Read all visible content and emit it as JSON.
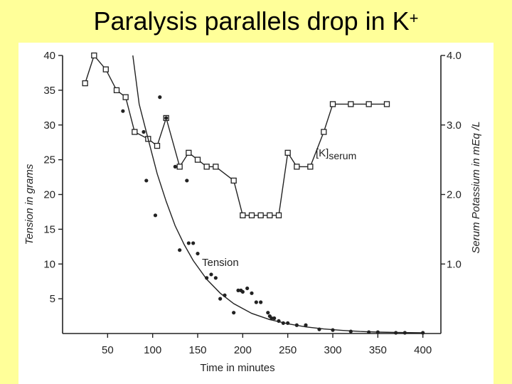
{
  "slide": {
    "title": "Paralysis parallels drop in K",
    "title_superscript": "+"
  },
  "colors": {
    "background": "#ffff99",
    "panel": "#ffffff",
    "ink": "#222222"
  },
  "chart_data": {
    "type": "scatter",
    "title": "",
    "xlabel": "Time in minutes",
    "ylabel_left": "Tension in grams",
    "ylabel_right": "Serum Potassium in mEq /L",
    "xlim": [
      0,
      420
    ],
    "ylim_left": [
      0,
      40
    ],
    "ylim_right": [
      0,
      4.0
    ],
    "x_ticks": [
      "50",
      "100",
      "150",
      "200",
      "250",
      "300",
      "350",
      "400"
    ],
    "y_left_ticks": [
      "5",
      "10",
      "15",
      "20",
      "25",
      "30",
      "35",
      "40"
    ],
    "y_right_ticks": [
      "1.0",
      "2.0",
      "3.0",
      "4.0"
    ],
    "grid": false,
    "annotations": {
      "potassium_label": "[K]",
      "potassium_label_sub": "serum",
      "tension_label": "Tension"
    },
    "series": [
      {
        "name": "[K]serum",
        "axis": "right",
        "marker": "square",
        "line": true,
        "x": [
          25,
          35,
          48,
          60,
          70,
          80,
          95,
          105,
          115,
          130,
          140,
          150,
          160,
          170,
          190,
          200,
          210,
          220,
          230,
          240,
          250,
          260,
          275,
          290,
          300,
          320,
          340,
          360
        ],
        "y": [
          3.6,
          4.0,
          3.8,
          3.5,
          3.4,
          2.9,
          2.8,
          2.7,
          3.1,
          2.4,
          2.6,
          2.5,
          2.4,
          2.4,
          2.2,
          1.7,
          1.7,
          1.7,
          1.7,
          1.7,
          2.6,
          2.4,
          2.4,
          2.9,
          3.3,
          3.3,
          3.3,
          3.3
        ]
      },
      {
        "name": "Tension",
        "axis": "left",
        "marker": "dot",
        "line": false,
        "x": [
          67,
          90,
          93,
          103,
          108,
          115,
          125,
          130,
          138,
          140,
          145,
          150,
          160,
          165,
          170,
          175,
          180,
          190,
          195,
          198,
          200,
          205,
          210,
          215,
          220,
          228,
          230,
          232,
          235,
          240,
          245,
          250,
          260,
          270,
          285,
          300,
          320,
          340,
          350,
          370,
          380,
          400
        ],
        "y": [
          32,
          29,
          22,
          17,
          34,
          31,
          24,
          12,
          22,
          13,
          13,
          11.5,
          8,
          8.5,
          8,
          5,
          5.5,
          3,
          6.2,
          6.2,
          6,
          6.5,
          5.8,
          4.5,
          4.5,
          3,
          2.5,
          2.2,
          2.2,
          1.8,
          1.5,
          1.5,
          1.2,
          1.2,
          0.6,
          0.5,
          0.3,
          0.2,
          0.2,
          0.1,
          0.1,
          0.1
        ]
      },
      {
        "name": "Tension fit",
        "axis": "left",
        "marker": "none",
        "line": true,
        "x": [
          78,
          85,
          95,
          105,
          115,
          125,
          135,
          145,
          160,
          175,
          190,
          210,
          230,
          250,
          270,
          290,
          310,
          330,
          350,
          370,
          400
        ],
        "y": [
          40,
          33,
          28,
          23,
          19,
          15.5,
          12.8,
          10.5,
          7.8,
          5.8,
          4.3,
          2.9,
          2.0,
          1.4,
          0.95,
          0.65,
          0.45,
          0.3,
          0.2,
          0.15,
          0.1
        ]
      }
    ]
  }
}
